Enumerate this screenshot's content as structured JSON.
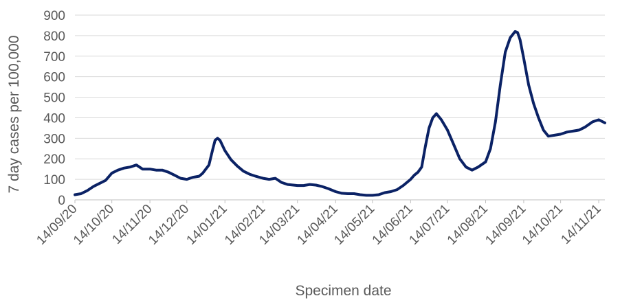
{
  "chart_data": {
    "type": "line",
    "xlabel": "Specimen date",
    "ylabel": "7 day cases per 100,000",
    "ylim": [
      0,
      900
    ],
    "yticks": [
      0,
      100,
      200,
      300,
      400,
      500,
      600,
      700,
      800,
      900
    ],
    "x_range": [
      "2020-09-14",
      "2021-11-19"
    ],
    "xtick_labels": [
      "14/09/20",
      "14/10/20",
      "14/11/20",
      "14/12/20",
      "14/01/21",
      "14/02/21",
      "14/03/21",
      "14/04/21",
      "14/05/21",
      "14/06/21",
      "14/07/21",
      "14/08/21",
      "14/09/21",
      "14/10/21",
      "14/11/21"
    ],
    "xtick_dates": [
      "2020-09-14",
      "2020-10-14",
      "2020-11-14",
      "2020-12-14",
      "2021-01-14",
      "2021-02-14",
      "2021-03-14",
      "2021-04-14",
      "2021-05-14",
      "2021-06-14",
      "2021-07-14",
      "2021-08-14",
      "2021-09-14",
      "2021-10-14",
      "2021-11-14"
    ],
    "grid": "horizontal",
    "legend": "none",
    "series_color": "#0b2265",
    "series": [
      {
        "x": [
          "2020-09-14",
          "2020-09-19",
          "2020-09-24",
          "2020-09-29",
          "2020-10-04",
          "2020-10-09",
          "2020-10-14",
          "2020-10-19",
          "2020-10-24",
          "2020-10-29",
          "2020-11-03",
          "2020-11-08",
          "2020-11-14",
          "2020-11-19",
          "2020-11-24",
          "2020-11-29",
          "2020-12-04",
          "2020-12-09",
          "2020-12-14",
          "2020-12-19",
          "2020-12-24",
          "2020-12-27",
          "2021-01-01",
          "2021-01-04",
          "2021-01-06",
          "2021-01-08",
          "2021-01-10",
          "2021-01-14",
          "2021-01-19",
          "2021-01-24",
          "2021-01-29",
          "2021-02-03",
          "2021-02-08",
          "2021-02-14",
          "2021-02-19",
          "2021-02-24",
          "2021-03-01",
          "2021-03-06",
          "2021-03-14",
          "2021-03-19",
          "2021-03-24",
          "2021-03-29",
          "2021-04-03",
          "2021-04-08",
          "2021-04-14",
          "2021-04-19",
          "2021-04-24",
          "2021-04-29",
          "2021-05-04",
          "2021-05-09",
          "2021-05-14",
          "2021-05-19",
          "2021-05-24",
          "2021-05-29",
          "2021-06-03",
          "2021-06-08",
          "2021-06-14",
          "2021-06-17",
          "2021-06-20",
          "2021-06-23",
          "2021-06-26",
          "2021-06-29",
          "2021-07-02",
          "2021-07-05",
          "2021-07-09",
          "2021-07-14",
          "2021-07-19",
          "2021-07-24",
          "2021-07-29",
          "2021-08-03",
          "2021-08-08",
          "2021-08-14",
          "2021-08-18",
          "2021-08-22",
          "2021-08-26",
          "2021-08-30",
          "2021-09-03",
          "2021-09-07",
          "2021-09-09",
          "2021-09-11",
          "2021-09-14",
          "2021-09-18",
          "2021-09-22",
          "2021-09-26",
          "2021-09-30",
          "2021-10-04",
          "2021-10-09",
          "2021-10-14",
          "2021-10-19",
          "2021-10-24",
          "2021-10-29",
          "2021-11-03",
          "2021-11-09",
          "2021-11-14",
          "2021-11-19"
        ],
        "y": [
          25,
          30,
          45,
          65,
          80,
          95,
          130,
          145,
          155,
          160,
          170,
          150,
          150,
          145,
          145,
          135,
          120,
          105,
          100,
          110,
          115,
          130,
          170,
          245,
          290,
          300,
          290,
          240,
          195,
          165,
          140,
          125,
          115,
          105,
          100,
          105,
          85,
          75,
          70,
          70,
          75,
          72,
          65,
          55,
          40,
          32,
          30,
          30,
          25,
          22,
          22,
          25,
          35,
          40,
          50,
          70,
          100,
          120,
          135,
          160,
          260,
          350,
          400,
          420,
          390,
          340,
          270,
          200,
          160,
          145,
          160,
          185,
          250,
          380,
          560,
          720,
          790,
          820,
          815,
          780,
          690,
          560,
          470,
          400,
          340,
          310,
          315,
          320,
          330,
          335,
          340,
          355,
          380,
          390,
          375
        ]
      }
    ]
  }
}
